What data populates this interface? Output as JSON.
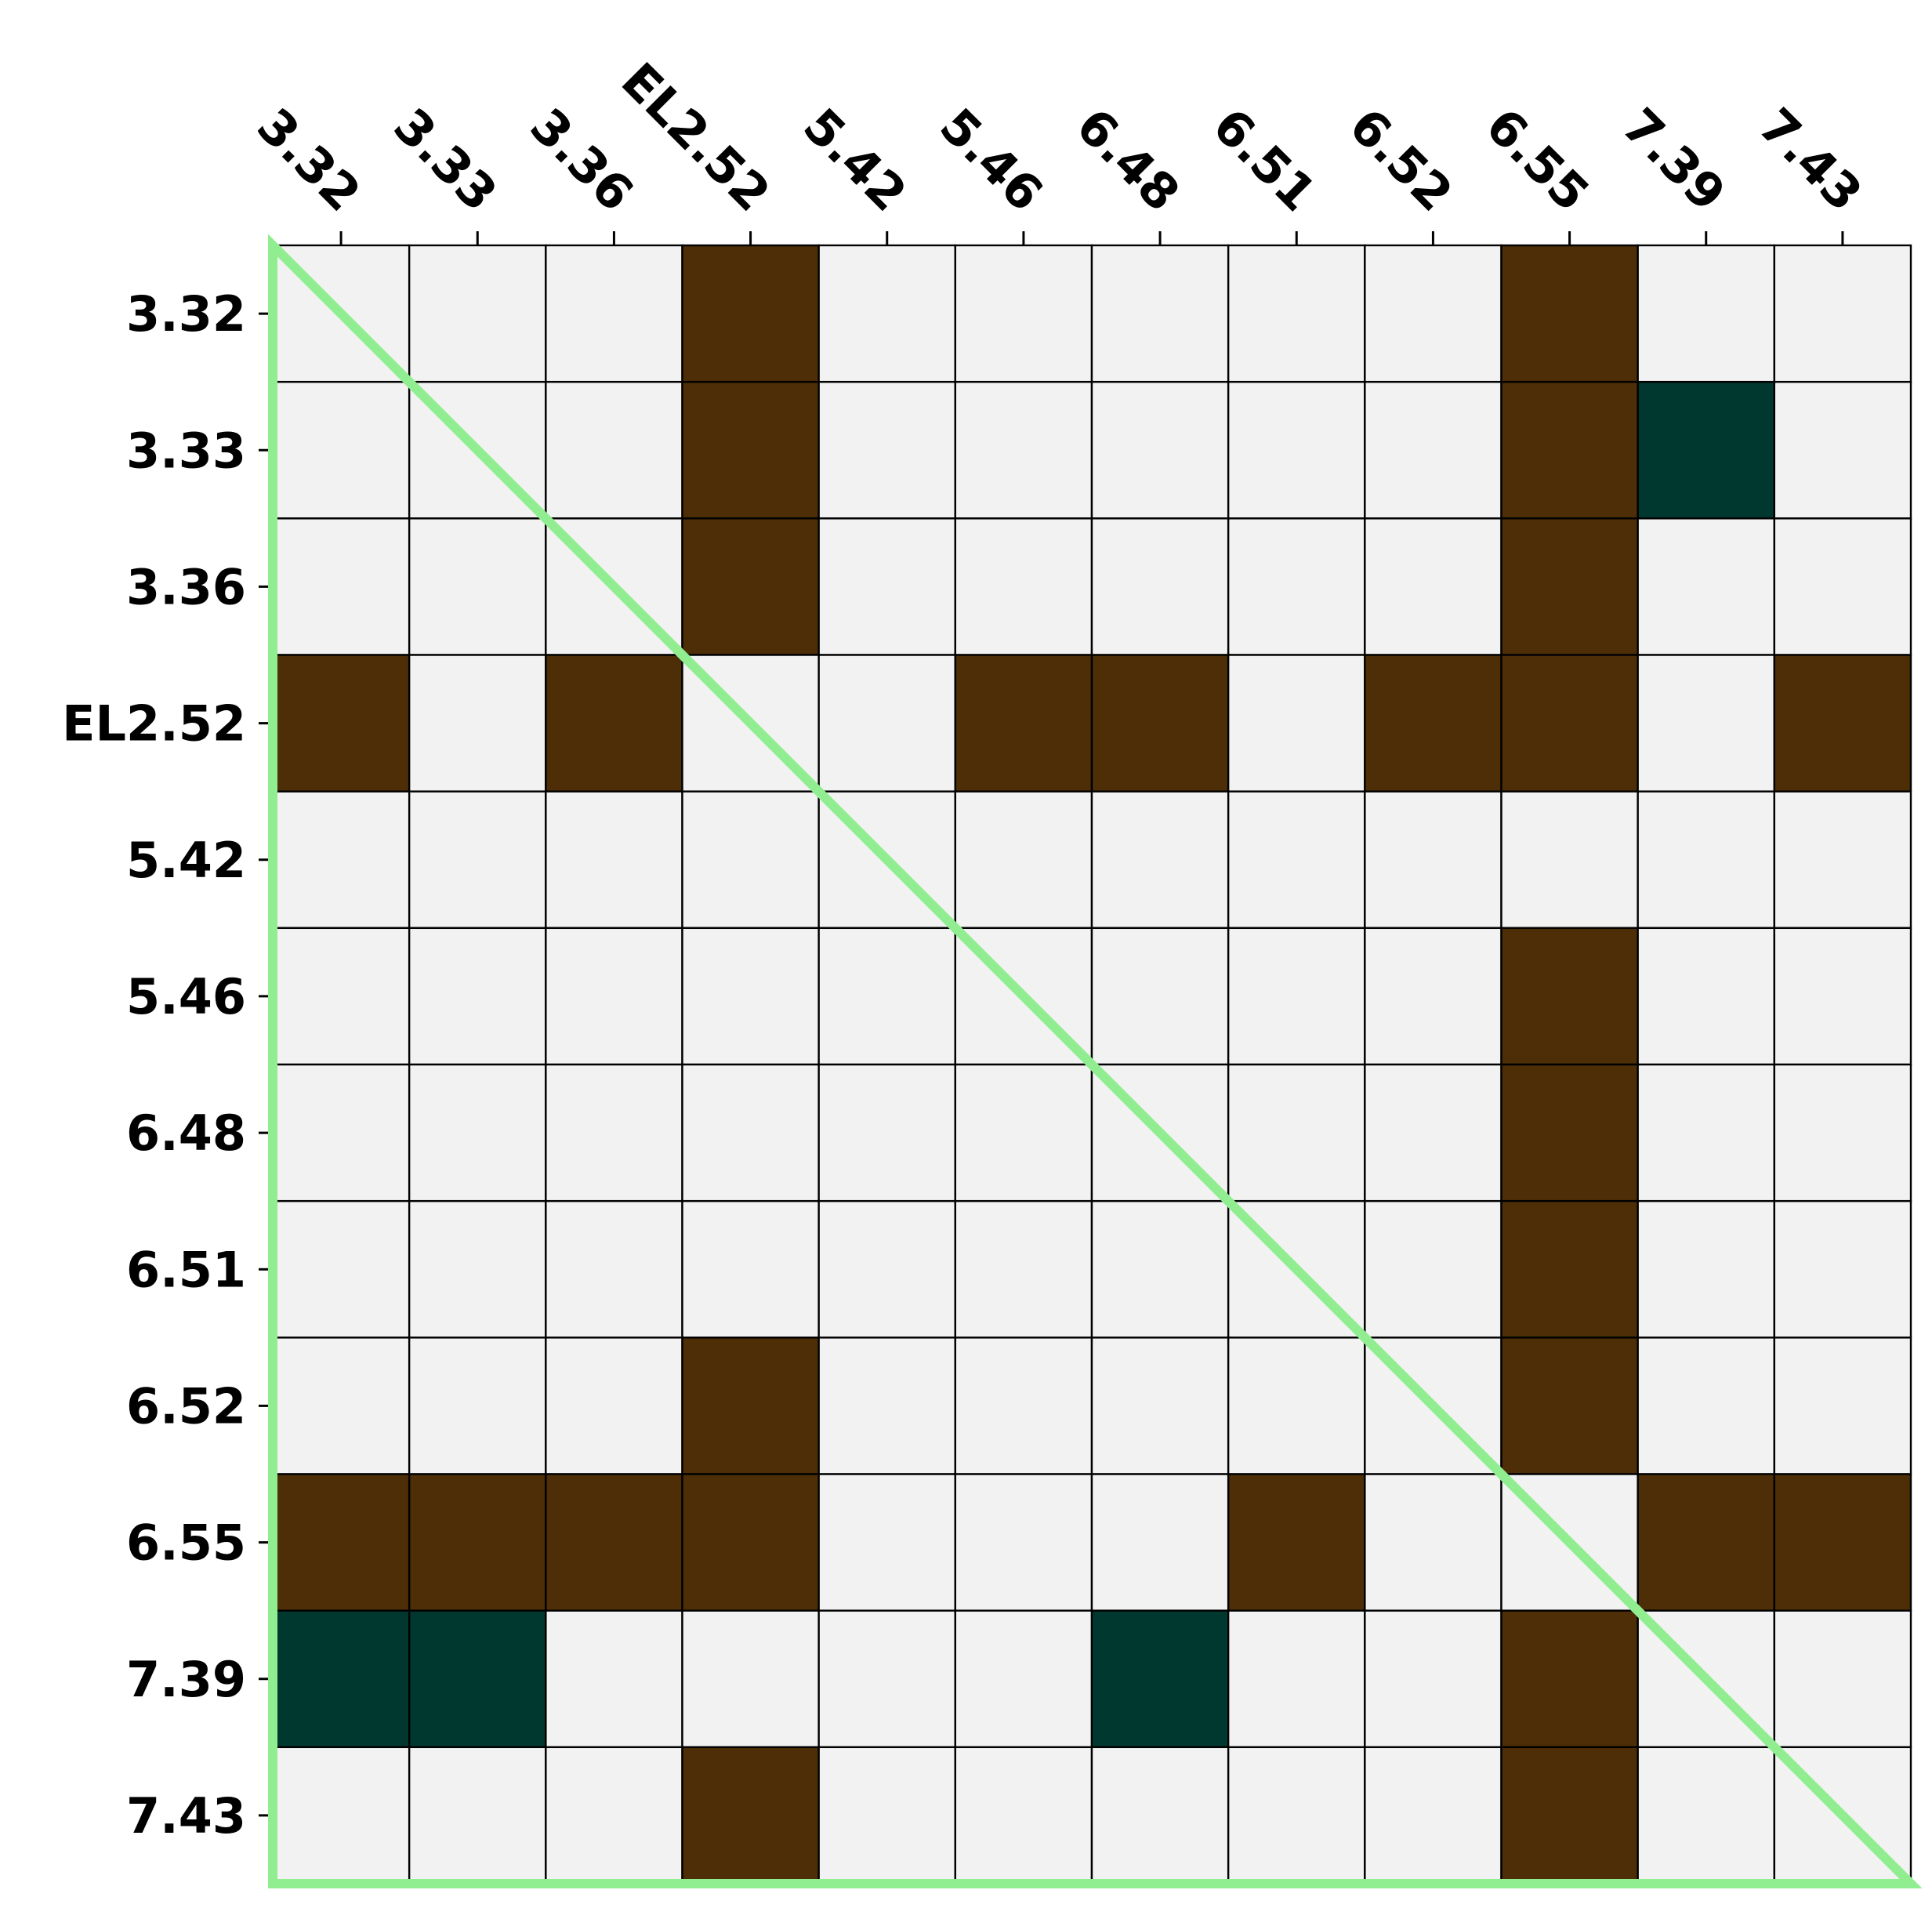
{
  "chart_data": {
    "type": "heatmap",
    "x_labels": [
      "3.32",
      "3.33",
      "3.36",
      "EL2.52",
      "5.42",
      "5.46",
      "6.48",
      "6.51",
      "6.52",
      "6.55",
      "7.39",
      "7.43"
    ],
    "y_labels": [
      "3.32",
      "3.33",
      "3.36",
      "EL2.52",
      "5.42",
      "5.46",
      "6.48",
      "6.51",
      "6.52",
      "6.55",
      "7.39",
      "7.43"
    ],
    "matrix": [
      [
        0,
        0,
        0,
        1,
        0,
        0,
        0,
        0,
        0,
        1,
        0,
        0
      ],
      [
        0,
        0,
        0,
        1,
        0,
        0,
        0,
        0,
        0,
        1,
        2,
        0
      ],
      [
        0,
        0,
        0,
        1,
        0,
        0,
        0,
        0,
        0,
        1,
        0,
        0
      ],
      [
        1,
        0,
        1,
        0,
        0,
        1,
        1,
        0,
        1,
        1,
        0,
        1
      ],
      [
        0,
        0,
        0,
        0,
        0,
        0,
        0,
        0,
        0,
        0,
        0,
        0
      ],
      [
        0,
        0,
        0,
        0,
        0,
        0,
        0,
        0,
        0,
        1,
        0,
        0
      ],
      [
        0,
        0,
        0,
        0,
        0,
        0,
        0,
        0,
        0,
        1,
        0,
        0
      ],
      [
        0,
        0,
        0,
        0,
        0,
        0,
        0,
        0,
        0,
        1,
        0,
        0
      ],
      [
        0,
        0,
        0,
        1,
        0,
        0,
        0,
        0,
        0,
        1,
        0,
        0
      ],
      [
        1,
        1,
        1,
        1,
        0,
        0,
        0,
        1,
        0,
        0,
        1,
        1
      ],
      [
        2,
        2,
        0,
        0,
        0,
        0,
        2,
        0,
        0,
        1,
        0,
        0
      ],
      [
        0,
        0,
        0,
        1,
        0,
        0,
        0,
        0,
        0,
        1,
        0,
        0
      ]
    ],
    "cell_colors": {
      "0": "#f2f2f2",
      "1": "#4d2e06",
      "2": "#00382f"
    },
    "x_axis_position": "top",
    "x_tick_rotation_deg": 45,
    "grid": true,
    "grid_color": "#000000",
    "triangle_outline_color": "#90ee90"
  }
}
